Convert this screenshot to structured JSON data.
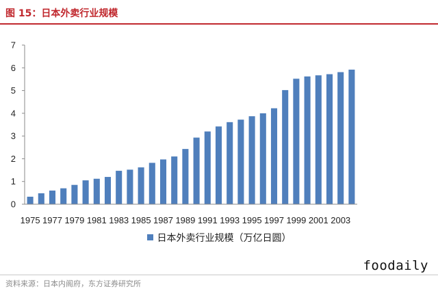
{
  "header": {
    "title": "图 15：日本外卖行业规模"
  },
  "colors": {
    "accent": "#c0272d",
    "bar": "#4f7fbc"
  },
  "chart_data": {
    "type": "bar",
    "title": "",
    "xlabel": "",
    "ylabel": "",
    "ylim": [
      0,
      7
    ],
    "yticks": [
      "0",
      "1",
      "2",
      "3",
      "4",
      "5",
      "6",
      "7"
    ],
    "categories": [
      "1975",
      "1976",
      "1977",
      "1978",
      "1979",
      "1980",
      "1981",
      "1982",
      "1983",
      "1984",
      "1985",
      "1986",
      "1987",
      "1988",
      "1989",
      "1990",
      "1991",
      "1992",
      "1993",
      "1994",
      "1995",
      "1996",
      "1997",
      "1998",
      "1999",
      "2000",
      "2001",
      "2002",
      "2003",
      "2004"
    ],
    "xtick_labels": [
      "1975",
      "1977",
      "1979",
      "1981",
      "1983",
      "1985",
      "1987",
      "1989",
      "1991",
      "1993",
      "1995",
      "1997",
      "1999",
      "2001",
      "2003"
    ],
    "series": [
      {
        "name": "日本外卖行业规模（万亿日圆）",
        "color": "#4f7fbc",
        "values": [
          0.33,
          0.48,
          0.6,
          0.7,
          0.85,
          1.05,
          1.12,
          1.2,
          1.47,
          1.52,
          1.62,
          1.82,
          1.97,
          2.1,
          2.43,
          2.93,
          3.2,
          3.42,
          3.61,
          3.72,
          3.87,
          4.0,
          4.22,
          5.02,
          5.52,
          5.62,
          5.67,
          5.72,
          5.81,
          5.92
        ]
      }
    ],
    "grid": false,
    "legend": "bottom"
  },
  "watermark": "foodaily",
  "source": "资料来源：日本内阁府，东方证券研究所"
}
